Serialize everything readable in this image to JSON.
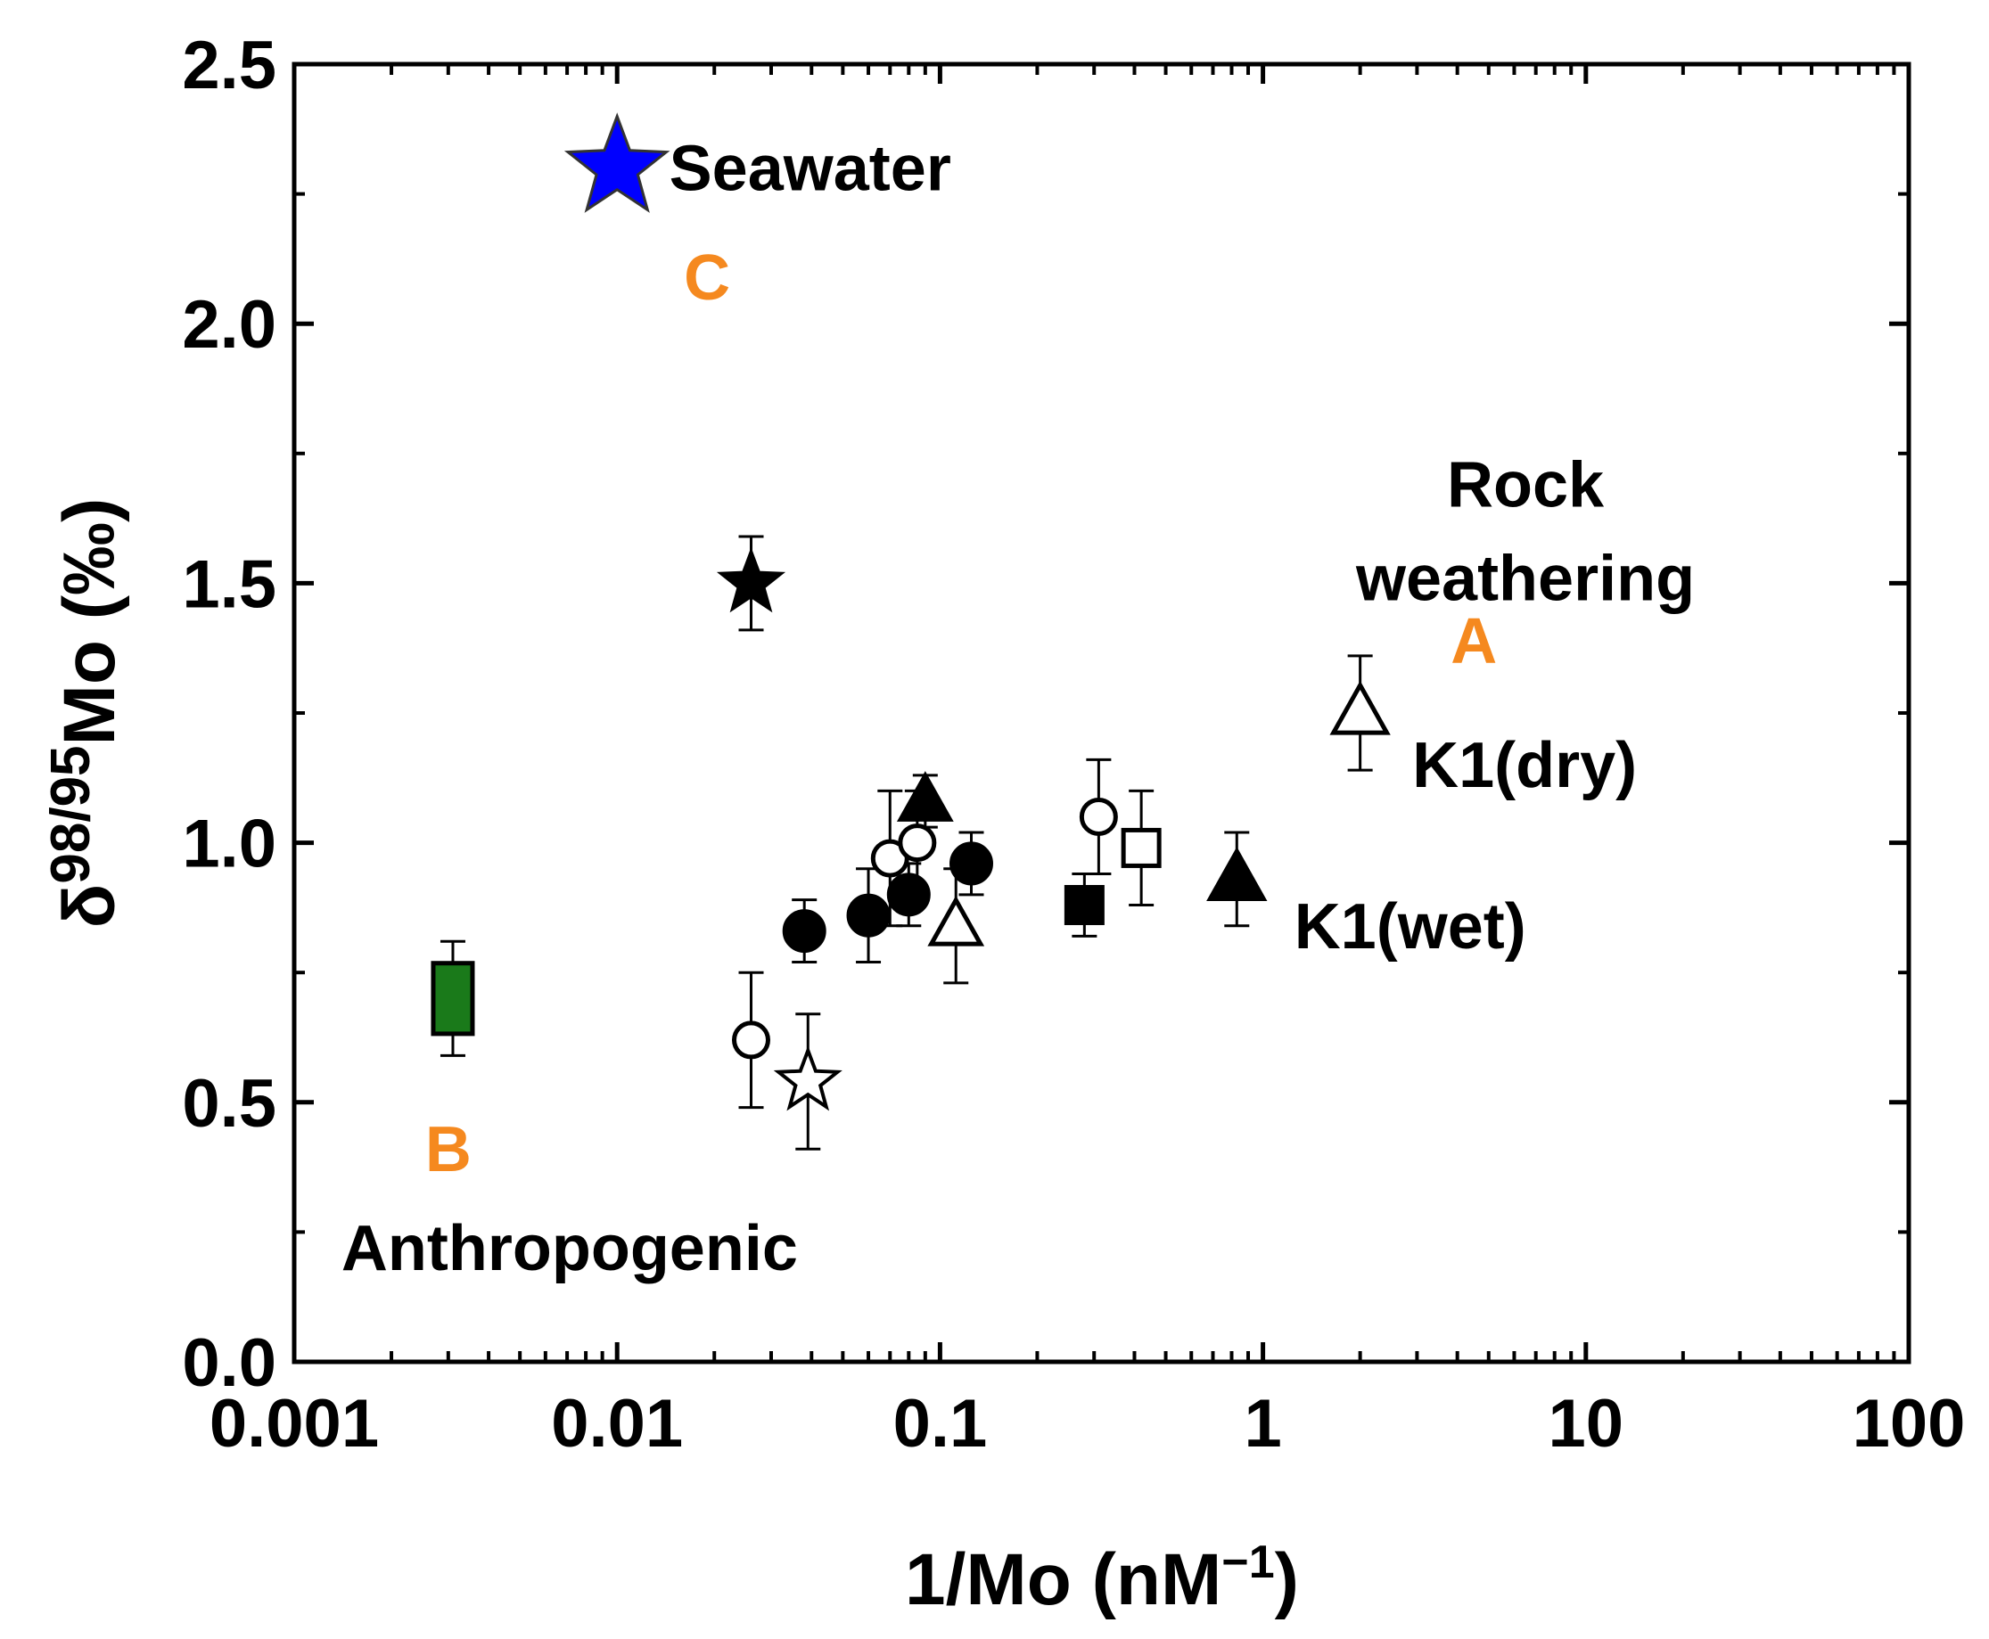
{
  "chart_data": {
    "type": "scatter",
    "xscale": "log",
    "xlim": [
      0.001,
      100
    ],
    "ylim": [
      0,
      2.5
    ],
    "xlabel": {
      "main": "1/Mo (nM",
      "sup": "−1",
      "close": ")"
    },
    "ylabel": {
      "delta": "δ",
      "sup": "98/95",
      "main": "Mo (‰)"
    },
    "xticks": [
      {
        "value": 0.001,
        "label": "0.001"
      },
      {
        "value": 0.01,
        "label": "0.01"
      },
      {
        "value": 0.1,
        "label": "0.1"
      },
      {
        "value": 1,
        "label": "1"
      },
      {
        "value": 10,
        "label": "10"
      },
      {
        "value": 100,
        "label": "100"
      }
    ],
    "yticks": [
      {
        "value": 0.0,
        "label": "0.0"
      },
      {
        "value": 0.5,
        "label": "0.5"
      },
      {
        "value": 1.0,
        "label": "1.0"
      },
      {
        "value": 1.5,
        "label": "1.5"
      },
      {
        "value": 2.0,
        "label": "2.0"
      },
      {
        "value": 2.5,
        "label": "2.5"
      }
    ],
    "points": [
      {
        "id": "seawater",
        "x": 0.01,
        "y": 2.3,
        "err": 0,
        "marker": "star",
        "fill": "#0000ff",
        "size": 40
      },
      {
        "id": "filled-star",
        "x": 0.026,
        "y": 1.5,
        "err": 0.09,
        "marker": "star",
        "fill": "#000000",
        "size": 24
      },
      {
        "id": "open-star",
        "x": 0.039,
        "y": 0.54,
        "err": 0.13,
        "marker": "star",
        "fill": "#ffffff",
        "size": 24
      },
      {
        "id": "green-end",
        "x": 0.0031,
        "y": 0.7,
        "err": 0.11,
        "marker": "rect",
        "fill": "#1a7a1a",
        "size": 22
      },
      {
        "id": "open-circle-1",
        "x": 0.026,
        "y": 0.62,
        "err": 0.13,
        "marker": "circle",
        "fill": "#ffffff",
        "size": 19
      },
      {
        "id": "open-circle-2",
        "x": 0.07,
        "y": 0.97,
        "err": 0.13,
        "marker": "circle",
        "fill": "#ffffff",
        "size": 19
      },
      {
        "id": "open-circle-3",
        "x": 0.085,
        "y": 1.0,
        "err": 0.1,
        "marker": "circle",
        "fill": "#ffffff",
        "size": 19
      },
      {
        "id": "open-circle-4",
        "x": 0.31,
        "y": 1.05,
        "err": 0.11,
        "marker": "circle",
        "fill": "#ffffff",
        "size": 19
      },
      {
        "id": "filled-circle-1",
        "x": 0.038,
        "y": 0.83,
        "err": 0.06,
        "marker": "circle",
        "fill": "#000000",
        "size": 22
      },
      {
        "id": "filled-circle-2",
        "x": 0.06,
        "y": 0.86,
        "err": 0.09,
        "marker": "circle",
        "fill": "#000000",
        "size": 22
      },
      {
        "id": "filled-circle-3",
        "x": 0.08,
        "y": 0.9,
        "err": 0.06,
        "marker": "circle",
        "fill": "#000000",
        "size": 22
      },
      {
        "id": "filled-circle-4",
        "x": 0.125,
        "y": 0.96,
        "err": 0.06,
        "marker": "circle",
        "fill": "#000000",
        "size": 22
      },
      {
        "id": "filled-triangle-1",
        "x": 0.09,
        "y": 1.08,
        "err": 0.05,
        "marker": "triangle",
        "fill": "#000000",
        "size": 24
      },
      {
        "id": "open-triangle-1",
        "x": 0.112,
        "y": 0.84,
        "err": 0.11,
        "marker": "triangle",
        "fill": "#ffffff",
        "size": 24
      },
      {
        "id": "filled-square",
        "x": 0.28,
        "y": 0.88,
        "err": 0.06,
        "marker": "square",
        "fill": "#000000",
        "size": 20
      },
      {
        "id": "open-square",
        "x": 0.42,
        "y": 0.99,
        "err": 0.11,
        "marker": "square",
        "fill": "#ffffff",
        "size": 20
      },
      {
        "id": "k1-wet",
        "x": 0.83,
        "y": 0.93,
        "err": 0.09,
        "marker": "triangle",
        "fill": "#000000",
        "size": 26
      },
      {
        "id": "k1-dry",
        "x": 2.0,
        "y": 1.25,
        "err": 0.11,
        "marker": "triangle",
        "fill": "#ffffff",
        "size": 26
      }
    ],
    "annotations": [
      {
        "id": "seawater-label",
        "text": "Seawater",
        "x": 0.0145,
        "y": 2.3,
        "cls": "annot",
        "anchor": "start"
      },
      {
        "id": "letter-c",
        "text": "C",
        "x": 0.019,
        "y": 2.09,
        "cls": "letter",
        "anchor": "middle"
      },
      {
        "id": "rock-label-1",
        "text": "Rock",
        "x": 6.5,
        "y": 1.69,
        "cls": "annot",
        "anchor": "middle"
      },
      {
        "id": "rock-label-2",
        "text": "weathering",
        "x": 6.5,
        "y": 1.51,
        "cls": "annot",
        "anchor": "middle"
      },
      {
        "id": "letter-a",
        "text": "A",
        "x": 4.5,
        "y": 1.39,
        "cls": "letter",
        "anchor": "middle"
      },
      {
        "id": "k1-dry-label",
        "text": "K1(dry)",
        "x": 2.9,
        "y": 1.15,
        "cls": "annot",
        "anchor": "start"
      },
      {
        "id": "k1-wet-label",
        "text": "K1(wet)",
        "x": 1.25,
        "y": 0.84,
        "cls": "annot",
        "anchor": "start"
      },
      {
        "id": "letter-b",
        "text": "B",
        "x": 0.003,
        "y": 0.41,
        "cls": "letter",
        "anchor": "middle"
      },
      {
        "id": "anthropogenic-label",
        "text": "Anthropogenic",
        "x": 0.0014,
        "y": 0.22,
        "cls": "annot",
        "anchor": "start"
      }
    ],
    "colors": {
      "accent_letters": "#f5891f",
      "axis": "#000000"
    }
  }
}
